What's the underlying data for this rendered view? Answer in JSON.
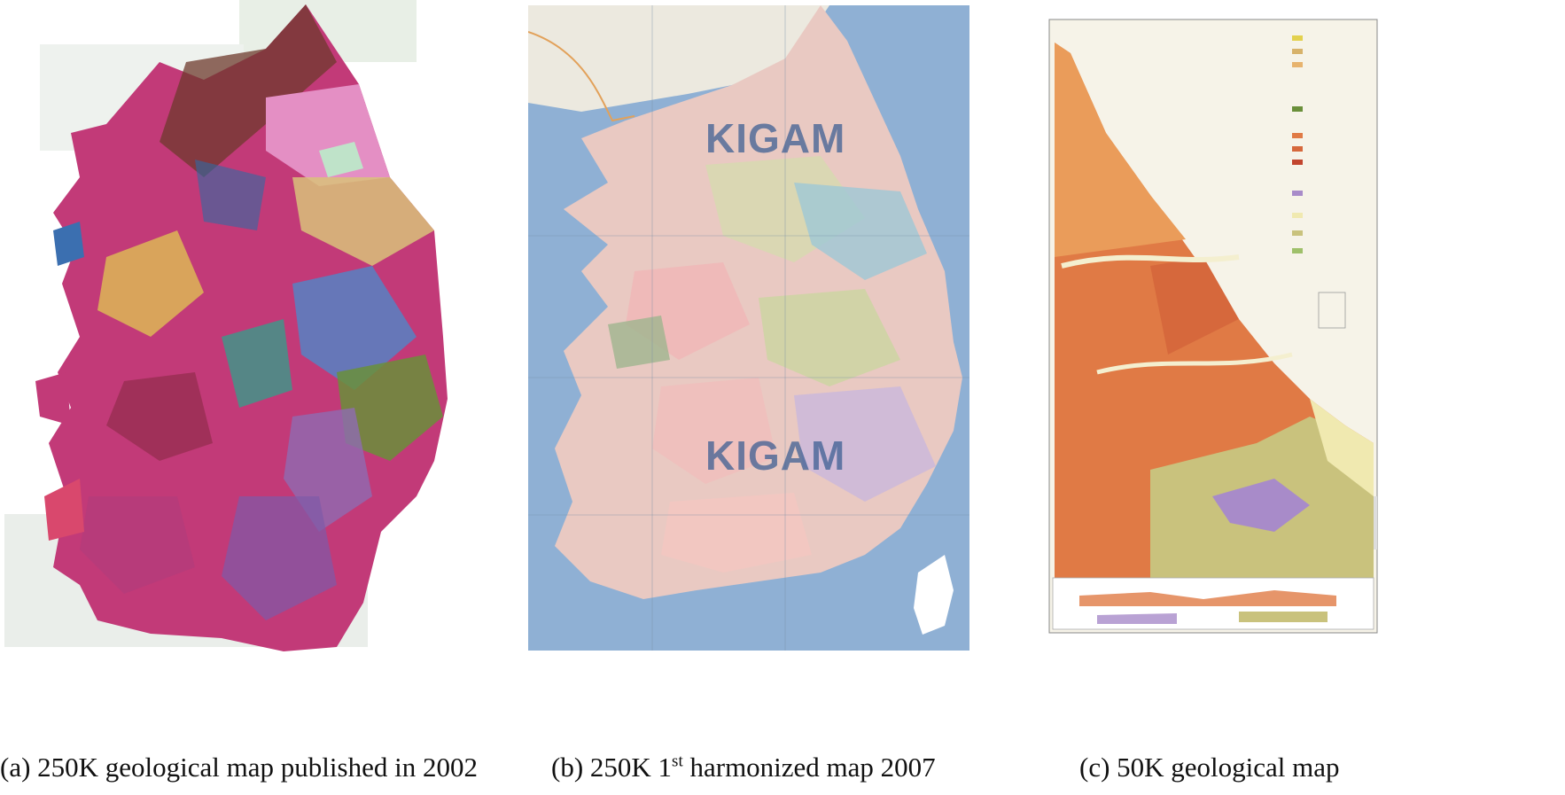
{
  "figure": {
    "panels": [
      {
        "id": "a",
        "caption": "(a) 250K geological map published in 2002",
        "icon": "geological-map-mosaic"
      },
      {
        "id": "b",
        "caption_pre": "(b) 250K 1",
        "caption_sup": "st",
        "caption_post": " harmonized map 2007",
        "watermark": "KIGAM",
        "icon": "harmonized-geological-map"
      },
      {
        "id": "c",
        "caption": "(c) 50K geological map",
        "icon": "geological-map-sheet"
      }
    ]
  },
  "colors": {
    "sea_b": "#8fb0d4",
    "land_b": "#e9c9c2",
    "paper": "#f6f3e8",
    "orange": "#e07a45",
    "olive": "#c9c27d",
    "magenta": "#c23a78",
    "purple": "#a88bc9"
  }
}
